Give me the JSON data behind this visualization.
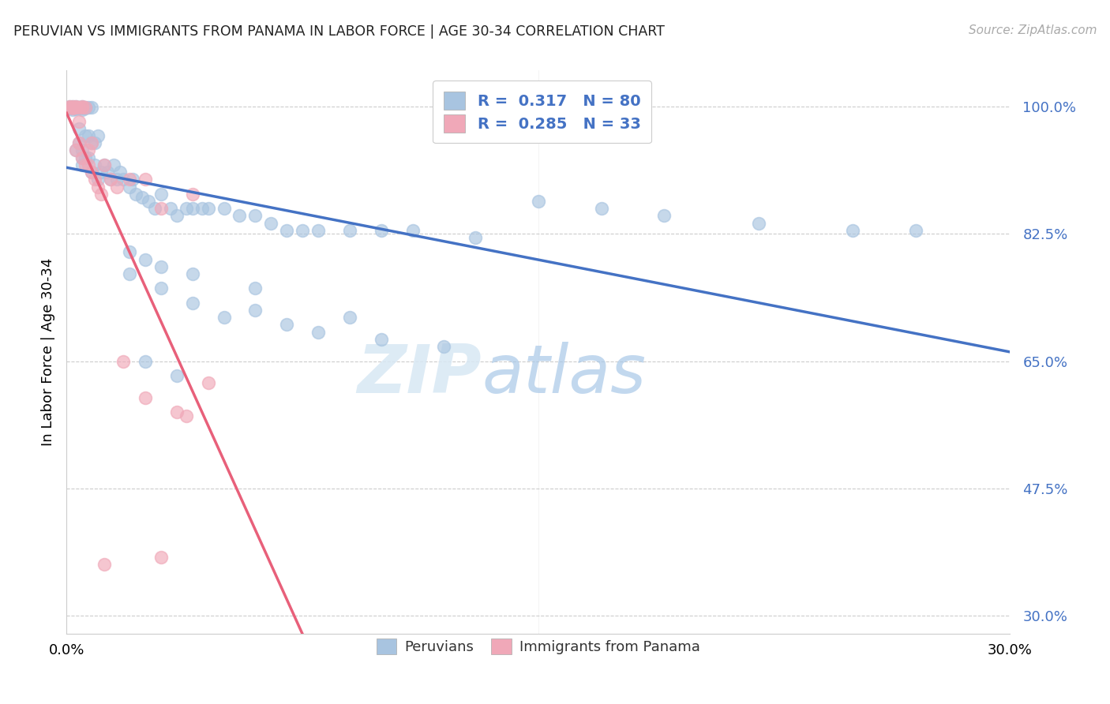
{
  "title": "PERUVIAN VS IMMIGRANTS FROM PANAMA IN LABOR FORCE | AGE 30-34 CORRELATION CHART",
  "source": "Source: ZipAtlas.com",
  "ylabel": "In Labor Force | Age 30-34",
  "xlim": [
    0.0,
    0.3
  ],
  "ylim": [
    0.275,
    1.05
  ],
  "ytick_vals": [
    0.3,
    0.475,
    0.65,
    0.825,
    1.0
  ],
  "ytick_labels": [
    "30.0%",
    "47.5%",
    "65.0%",
    "82.5%",
    "100.0%"
  ],
  "xtick_vals": [
    0.0,
    0.05,
    0.1,
    0.15,
    0.2,
    0.25,
    0.3
  ],
  "xtick_labels": [
    "0.0%",
    "",
    "",
    "",
    "",
    "",
    "30.0%"
  ],
  "grid_color": "#cccccc",
  "bg_color": "#ffffff",
  "peru_dot_color": "#a8c4e0",
  "pana_dot_color": "#f0a8b8",
  "peru_line_color": "#4472c4",
  "pana_line_color": "#e8607a",
  "legend_R_blue": "0.317",
  "legend_N_blue": "80",
  "legend_R_pink": "0.285",
  "legend_N_pink": "33",
  "peru_label": "Peruvians",
  "pana_label": "Immigrants from Panama",
  "watermark_zip": "ZIP",
  "watermark_atlas": "atlas",
  "peru_x": [
    0.001,
    0.001,
    0.001,
    0.002,
    0.002,
    0.002,
    0.002,
    0.003,
    0.003,
    0.003,
    0.003,
    0.003,
    0.004,
    0.004,
    0.004,
    0.004,
    0.005,
    0.005,
    0.005,
    0.005,
    0.005,
    0.005,
    0.005,
    0.006,
    0.006,
    0.006,
    0.006,
    0.007,
    0.007,
    0.007,
    0.008,
    0.008,
    0.008,
    0.009,
    0.009,
    0.01,
    0.01,
    0.011,
    0.012,
    0.013,
    0.014,
    0.015,
    0.016,
    0.017,
    0.018,
    0.02,
    0.021,
    0.022,
    0.024,
    0.026,
    0.028,
    0.03,
    0.033,
    0.035,
    0.038,
    0.04,
    0.043,
    0.045,
    0.05,
    0.055,
    0.06,
    0.065,
    0.07,
    0.075,
    0.08,
    0.09,
    0.1,
    0.11,
    0.13,
    0.15,
    0.17,
    0.19,
    0.22,
    0.25,
    0.27,
    0.02,
    0.025,
    0.03,
    0.04,
    0.06
  ],
  "peru_y": [
    1.0,
    0.999,
    0.998,
    1.0,
    0.999,
    0.998,
    0.996,
    1.0,
    0.999,
    0.998,
    0.997,
    0.94,
    0.999,
    0.998,
    0.97,
    0.95,
    1.0,
    0.999,
    0.998,
    0.996,
    0.94,
    0.93,
    0.92,
    0.999,
    0.998,
    0.96,
    0.93,
    0.999,
    0.96,
    0.93,
    0.999,
    0.95,
    0.91,
    0.95,
    0.92,
    0.96,
    0.9,
    0.91,
    0.92,
    0.91,
    0.9,
    0.92,
    0.9,
    0.91,
    0.9,
    0.89,
    0.9,
    0.88,
    0.875,
    0.87,
    0.86,
    0.88,
    0.86,
    0.85,
    0.86,
    0.86,
    0.86,
    0.86,
    0.86,
    0.85,
    0.85,
    0.84,
    0.83,
    0.83,
    0.83,
    0.83,
    0.83,
    0.83,
    0.82,
    0.87,
    0.86,
    0.85,
    0.84,
    0.83,
    0.83,
    0.8,
    0.79,
    0.78,
    0.77,
    0.75
  ],
  "pana_x": [
    0.001,
    0.001,
    0.002,
    0.002,
    0.002,
    0.003,
    0.003,
    0.003,
    0.004,
    0.004,
    0.004,
    0.005,
    0.005,
    0.005,
    0.006,
    0.006,
    0.007,
    0.007,
    0.008,
    0.008,
    0.009,
    0.01,
    0.011,
    0.012,
    0.014,
    0.016,
    0.02,
    0.025,
    0.03,
    0.04,
    0.018,
    0.025,
    0.035
  ],
  "pana_y": [
    1.0,
    0.999,
    1.0,
    0.999,
    0.998,
    1.0,
    0.999,
    0.94,
    0.999,
    0.98,
    0.95,
    1.0,
    0.999,
    0.93,
    0.999,
    0.92,
    0.94,
    0.92,
    0.95,
    0.91,
    0.9,
    0.89,
    0.88,
    0.92,
    0.9,
    0.89,
    0.9,
    0.9,
    0.86,
    0.88,
    0.65,
    0.6,
    0.58
  ]
}
